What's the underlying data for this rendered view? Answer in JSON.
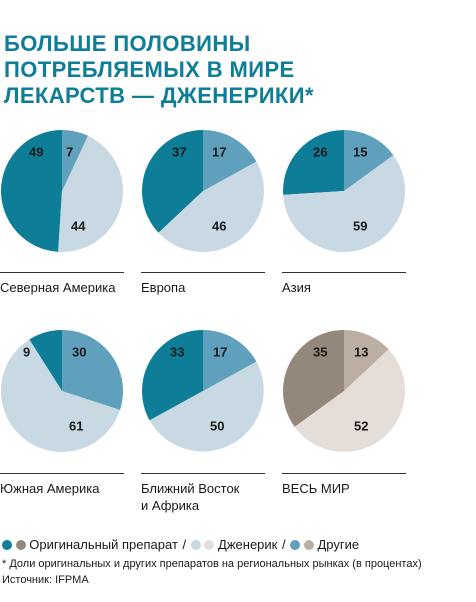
{
  "title_lines": [
    "БОЛЬШЕ ПОЛОВИНЫ",
    "ПОТРЕБЛЯЕМЫХ В МИРЕ",
    "ЛЕКАРСТВ — ДЖЕНЕРИКИ*"
  ],
  "colors": {
    "title": "#0e7e98",
    "original": "#0e7e98",
    "generic": "#c9d9e4",
    "other": "#5fa1bc",
    "world_original": "#94877b",
    "world_generic": "#e5ded8",
    "world_other": "#bbaea3"
  },
  "legend": {
    "original": "Оригинальный препарат",
    "generic": "Дженерик",
    "other": "Другие",
    "separator": "/"
  },
  "footnote": "* Доли оригинальных и других препаратов на региональных рынках (в процентах)",
  "source": "Источник: IFPMA",
  "chart_data": [
    {
      "type": "pie",
      "region": [
        "Северная Америка"
      ],
      "slices": [
        {
          "category": "Оригинальный препарат",
          "value": 49
        },
        {
          "category": "Дженерик",
          "value": 44
        },
        {
          "category": "Другие",
          "value": 7
        }
      ]
    },
    {
      "type": "pie",
      "region": [
        "Европа"
      ],
      "slices": [
        {
          "category": "Оригинальный препарат",
          "value": 37
        },
        {
          "category": "Дженерик",
          "value": 46
        },
        {
          "category": "Другие",
          "value": 17
        }
      ]
    },
    {
      "type": "pie",
      "region": [
        "Азия"
      ],
      "slices": [
        {
          "category": "Оригинальный препарат",
          "value": 26
        },
        {
          "category": "Дженерик",
          "value": 59
        },
        {
          "category": "Другие",
          "value": 15
        }
      ]
    },
    {
      "type": "pie",
      "region": [
        "Южная Америка"
      ],
      "slices": [
        {
          "category": "Оригинальный препарат",
          "value": 9
        },
        {
          "category": "Дженерик",
          "value": 61
        },
        {
          "category": "Другие",
          "value": 30
        }
      ]
    },
    {
      "type": "pie",
      "region": [
        "Ближний Восток",
        "и Африка"
      ],
      "slices": [
        {
          "category": "Оригинальный препарат",
          "value": 33
        },
        {
          "category": "Дженерик",
          "value": 50
        },
        {
          "category": "Другие",
          "value": 17
        }
      ]
    },
    {
      "type": "pie",
      "region": [
        "ВЕСЬ МИР"
      ],
      "palette": "world",
      "slices": [
        {
          "category": "Оригинальный препарат",
          "value": 35
        },
        {
          "category": "Дженерик",
          "value": 52
        },
        {
          "category": "Другие",
          "value": 13
        }
      ]
    }
  ]
}
